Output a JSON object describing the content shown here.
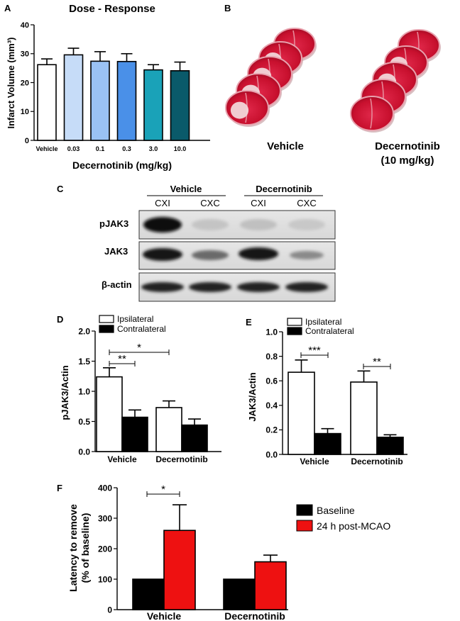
{
  "panels": {
    "a": {
      "letter": "A",
      "chart_data": {
        "type": "bar",
        "title": "Dose - Response",
        "ylabel": "Infarct Volume (mm³)",
        "xlabel": "Decernotinib (mg/kg)",
        "categories": [
          "Vehicle",
          "0.03",
          "0.1",
          "0.3",
          "3.0",
          "10.0"
        ],
        "values": [
          26.2,
          29.6,
          27.4,
          27.3,
          24.4,
          24.1
        ],
        "errors": [
          2.0,
          2.3,
          3.3,
          2.7,
          1.8,
          3.0
        ],
        "colors": [
          "#ffffff",
          "#c6dcf8",
          "#9ac2f4",
          "#4a90e8",
          "#1aa2b8",
          "#0a5a6a"
        ],
        "ylim": [
          0,
          40
        ],
        "yticks": [
          "0",
          "10",
          "20",
          "30",
          "40"
        ]
      }
    },
    "b": {
      "letter": "B",
      "labels": [
        "Vehicle",
        "Decernotinib",
        "(10 mg/kg)"
      ]
    },
    "c": {
      "letter": "C",
      "groups": [
        "Vehicle",
        "Decernotinib"
      ],
      "lanes": [
        "CXI",
        "CXC",
        "CXI",
        "CXC"
      ],
      "rows": [
        "pJAK3",
        "JAK3",
        "β-actin"
      ]
    },
    "d": {
      "letter": "D",
      "chart_data": {
        "type": "bar",
        "ylabel": "pJAK3/Actin",
        "categories": [
          "Vehicle",
          "Decernotinib"
        ],
        "series": [
          {
            "name": "Ipsilateral",
            "values": [
              1.24,
              0.73
            ],
            "errors": [
              0.15,
              0.11
            ],
            "color": "#ffffff"
          },
          {
            "name": "Contralateral",
            "values": [
              0.57,
              0.44
            ],
            "errors": [
              0.12,
              0.1
            ],
            "color": "#000000"
          }
        ],
        "ylim": [
          0,
          2.0
        ],
        "yticks": [
          "0.0",
          "0.5",
          "1.0",
          "1.5",
          "2.0"
        ],
        "annotations": [
          "**",
          "*"
        ]
      }
    },
    "e": {
      "letter": "E",
      "chart_data": {
        "type": "bar",
        "ylabel": "JAK3/Actin",
        "categories": [
          "Vehicle",
          "Decernotinib"
        ],
        "series": [
          {
            "name": "Ipsilateral",
            "values": [
              0.67,
              0.59
            ],
            "errors": [
              0.1,
              0.09
            ],
            "color": "#ffffff"
          },
          {
            "name": "Contralateral",
            "values": [
              0.17,
              0.14
            ],
            "errors": [
              0.04,
              0.02
            ],
            "color": "#000000"
          }
        ],
        "ylim": [
          0,
          1.0
        ],
        "yticks": [
          "0.0",
          "0.2",
          "0.4",
          "0.6",
          "0.8",
          "1.0"
        ],
        "annotations": [
          "***",
          "**"
        ]
      }
    },
    "f": {
      "letter": "F",
      "chart_data": {
        "type": "bar",
        "ylabel": [
          "Latency to remove",
          "(% of baseline)"
        ],
        "categories": [
          "Vehicle",
          "Decernotinib"
        ],
        "series": [
          {
            "name": "Baseline",
            "values": [
              100,
              100
            ],
            "errors": [
              0,
              0
            ],
            "color": "#000000"
          },
          {
            "name": "24 h post-MCAO",
            "values": [
              260,
              157
            ],
            "errors": [
              84,
              22
            ],
            "color": "#ee1111"
          }
        ],
        "ylim": [
          0,
          400
        ],
        "yticks": [
          "0",
          "100",
          "200",
          "300",
          "400"
        ],
        "annotations": [
          "*"
        ]
      }
    }
  }
}
